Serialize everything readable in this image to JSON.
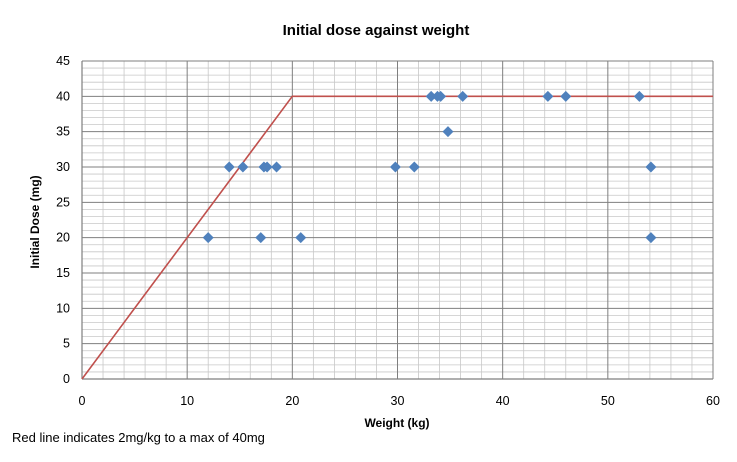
{
  "chart_data": {
    "type": "scatter",
    "title": "Initial dose against weight",
    "xlabel": "Weight (kg)",
    "ylabel": "Initial Dose (mg)",
    "xlim": [
      0,
      60
    ],
    "ylim": [
      0,
      45
    ],
    "x_ticks": [
      0,
      10,
      20,
      30,
      40,
      50,
      60
    ],
    "y_ticks": [
      0,
      5,
      10,
      15,
      20,
      25,
      30,
      35,
      40,
      45
    ],
    "grid": true,
    "legend": "none",
    "series": [
      {
        "type": "scatter",
        "color": "#4f81bd",
        "marker": "diamond",
        "points": [
          {
            "x": 12,
            "y": 20
          },
          {
            "x": 14,
            "y": 30
          },
          {
            "x": 15.3,
            "y": 30
          },
          {
            "x": 17,
            "y": 20
          },
          {
            "x": 17.3,
            "y": 30
          },
          {
            "x": 17.6,
            "y": 30
          },
          {
            "x": 18.5,
            "y": 30
          },
          {
            "x": 20.8,
            "y": 20
          },
          {
            "x": 29.8,
            "y": 30
          },
          {
            "x": 31.6,
            "y": 30
          },
          {
            "x": 33.2,
            "y": 40
          },
          {
            "x": 33.8,
            "y": 40
          },
          {
            "x": 34.1,
            "y": 40
          },
          {
            "x": 34.8,
            "y": 35
          },
          {
            "x": 36.2,
            "y": 40
          },
          {
            "x": 44.3,
            "y": 40
          },
          {
            "x": 46,
            "y": 40
          },
          {
            "x": 53,
            "y": 40
          },
          {
            "x": 54.1,
            "y": 30
          },
          {
            "x": 54.1,
            "y": 20
          }
        ]
      },
      {
        "type": "line",
        "color": "#c0504d",
        "points": [
          {
            "x": 0,
            "y": 0
          },
          {
            "x": 20,
            "y": 40
          },
          {
            "x": 60,
            "y": 40
          }
        ]
      }
    ]
  },
  "note": "Red line indicates 2mg/kg to a max of 40mg"
}
